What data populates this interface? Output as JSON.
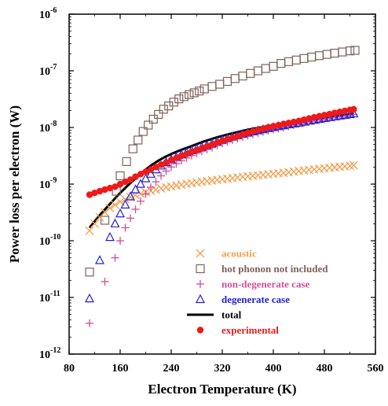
{
  "chart_data": {
    "type": "scatter",
    "xlabel": "Electron Temperature (K)",
    "ylabel": "Power loss per electron (W)",
    "xlim": [
      80,
      560
    ],
    "ylim": [
      1e-12,
      1e-06
    ],
    "yscale": "log",
    "x_ticks": [
      "80",
      "160",
      "240",
      "320",
      "400",
      "480",
      "560"
    ],
    "y_ticks": [
      {
        "base": "10",
        "exp": "-12"
      },
      {
        "base": "10",
        "exp": "-11"
      },
      {
        "base": "10",
        "exp": "-10"
      },
      {
        "base": "10",
        "exp": "-9"
      },
      {
        "base": "10",
        "exp": "-8"
      },
      {
        "base": "10",
        "exp": "-7"
      },
      {
        "base": "10",
        "exp": "-6"
      }
    ],
    "legend_position": "bottom-right",
    "series": [
      {
        "name": "acoustic",
        "marker": "x",
        "color": "#f0a050",
        "points": [
          [
            112,
            1.5e-10
          ],
          [
            120,
            2e-10
          ],
          [
            128,
            2.6e-10
          ],
          [
            136,
            3.2e-10
          ],
          [
            144,
            3.8e-10
          ],
          [
            152,
            4.3e-10
          ],
          [
            160,
            4.9e-10
          ],
          [
            168,
            5.4e-10
          ],
          [
            176,
            5.9e-10
          ],
          [
            184,
            6.4e-10
          ],
          [
            192,
            6.8e-10
          ],
          [
            200,
            7.2e-10
          ],
          [
            208,
            7.6e-10
          ],
          [
            216,
            8e-10
          ],
          [
            224,
            8.4e-10
          ],
          [
            232,
            8.8e-10
          ],
          [
            240,
            9.1e-10
          ],
          [
            248,
            9.5e-10
          ],
          [
            256,
            9.8e-10
          ],
          [
            264,
            1.01e-09
          ],
          [
            272,
            1.04e-09
          ],
          [
            280,
            1.07e-09
          ],
          [
            288,
            1.1e-09
          ],
          [
            296,
            1.13e-09
          ],
          [
            304,
            1.16e-09
          ],
          [
            312,
            1.19e-09
          ],
          [
            320,
            1.22e-09
          ],
          [
            328,
            1.25e-09
          ],
          [
            336,
            1.28e-09
          ],
          [
            344,
            1.31e-09
          ],
          [
            352,
            1.34e-09
          ],
          [
            360,
            1.37e-09
          ],
          [
            368,
            1.4e-09
          ],
          [
            376,
            1.43e-09
          ],
          [
            384,
            1.46e-09
          ],
          [
            392,
            1.49e-09
          ],
          [
            400,
            1.52e-09
          ],
          [
            408,
            1.55e-09
          ],
          [
            416,
            1.58e-09
          ],
          [
            424,
            1.62e-09
          ],
          [
            432,
            1.66e-09
          ],
          [
            440,
            1.7e-09
          ],
          [
            448,
            1.74e-09
          ],
          [
            456,
            1.78e-09
          ],
          [
            464,
            1.82e-09
          ],
          [
            472,
            1.86e-09
          ],
          [
            480,
            1.9e-09
          ],
          [
            488,
            1.94e-09
          ],
          [
            496,
            1.98e-09
          ],
          [
            504,
            2.02e-09
          ],
          [
            512,
            2.06e-09
          ],
          [
            520,
            2.1e-09
          ],
          [
            526,
            2.14e-09
          ]
        ]
      },
      {
        "name": "hot phonon not included",
        "marker": "square",
        "color": "#806058",
        "points": [
          [
            112,
            2.8e-11
          ],
          [
            136,
            2.3e-10
          ],
          [
            154,
            7.5e-10
          ],
          [
            160,
            1.4e-09
          ],
          [
            170,
            2.5e-09
          ],
          [
            180,
            4.2e-09
          ],
          [
            188,
            6e-09
          ],
          [
            196,
            8.5e-09
          ],
          [
            204,
            1.1e-08
          ],
          [
            212,
            1.4e-08
          ],
          [
            220,
            1.7e-08
          ],
          [
            228,
            2.1e-08
          ],
          [
            236,
            2.4e-08
          ],
          [
            244,
            2.8e-08
          ],
          [
            252,
            3.2e-08
          ],
          [
            260,
            3.5e-08
          ],
          [
            268,
            3.8e-08
          ],
          [
            276,
            4.1e-08
          ],
          [
            284,
            4.4e-08
          ],
          [
            292,
            4.8e-08
          ],
          [
            304,
            5.3e-08
          ],
          [
            316,
            5.8e-08
          ],
          [
            328,
            6.5e-08
          ],
          [
            340,
            7.3e-08
          ],
          [
            352,
            8.1e-08
          ],
          [
            364,
            9e-08
          ],
          [
            376,
            1e-07
          ],
          [
            388,
            1.1e-07
          ],
          [
            400,
            1.2e-07
          ],
          [
            412,
            1.35e-07
          ],
          [
            424,
            1.45e-07
          ],
          [
            436,
            1.55e-07
          ],
          [
            448,
            1.65e-07
          ],
          [
            460,
            1.75e-07
          ],
          [
            472,
            1.85e-07
          ],
          [
            484,
            1.95e-07
          ],
          [
            496,
            2.05e-07
          ],
          [
            508,
            2.15e-07
          ],
          [
            520,
            2.25e-07
          ],
          [
            528,
            2.3e-07
          ]
        ]
      },
      {
        "name": "non-degenerate case",
        "marker": "plus",
        "color": "#d04e98",
        "points": [
          [
            112,
            3.5e-12
          ],
          [
            136,
            1.9e-11
          ],
          [
            152,
            5e-11
          ],
          [
            160,
            1e-10
          ],
          [
            168,
            1.7e-10
          ],
          [
            176,
            2.5e-10
          ],
          [
            184,
            3.6e-10
          ],
          [
            192,
            5e-10
          ],
          [
            200,
            6.7e-10
          ],
          [
            208,
            8.8e-10
          ],
          [
            216,
            1.1e-09
          ],
          [
            224,
            1.4e-09
          ],
          [
            232,
            1.7e-09
          ],
          [
            240,
            2e-09
          ],
          [
            248,
            2.3e-09
          ],
          [
            256,
            2.6e-09
          ],
          [
            264,
            2.9e-09
          ],
          [
            272,
            3.2e-09
          ],
          [
            280,
            3.5e-09
          ],
          [
            288,
            3.8e-09
          ],
          [
            296,
            4.1e-09
          ],
          [
            304,
            4.4e-09
          ],
          [
            312,
            4.8e-09
          ],
          [
            320,
            5.2e-09
          ],
          [
            328,
            5.6e-09
          ],
          [
            336,
            6e-09
          ],
          [
            344,
            6.4e-09
          ],
          [
            352,
            6.8e-09
          ],
          [
            360,
            7.2e-09
          ],
          [
            368,
            7.6e-09
          ],
          [
            376,
            8e-09
          ],
          [
            384,
            8.4e-09
          ],
          [
            392,
            8.8e-09
          ],
          [
            400,
            9.2e-09
          ],
          [
            408,
            9.6e-09
          ],
          [
            416,
            1e-08
          ],
          [
            424,
            1.05e-08
          ],
          [
            432,
            1.1e-08
          ],
          [
            440,
            1.15e-08
          ],
          [
            448,
            1.2e-08
          ],
          [
            456,
            1.25e-08
          ],
          [
            464,
            1.3e-08
          ],
          [
            472,
            1.35e-08
          ],
          [
            480,
            1.4e-08
          ],
          [
            488,
            1.45e-08
          ],
          [
            496,
            1.5e-08
          ],
          [
            504,
            1.55e-08
          ],
          [
            512,
            1.6e-08
          ],
          [
            520,
            1.65e-08
          ],
          [
            526,
            1.7e-08
          ]
        ]
      },
      {
        "name": "degenerate case",
        "marker": "triangle",
        "color": "#2020d8",
        "points": [
          [
            112,
            9.5e-12
          ],
          [
            128,
            4.5e-11
          ],
          [
            144,
            1.15e-10
          ],
          [
            152,
            2e-10
          ],
          [
            160,
            3e-10
          ],
          [
            168,
            4.3e-10
          ],
          [
            176,
            6e-10
          ],
          [
            184,
            8e-10
          ],
          [
            192,
            1e-09
          ],
          [
            200,
            1.25e-09
          ],
          [
            208,
            1.5e-09
          ],
          [
            216,
            1.8e-09
          ],
          [
            224,
            2.1e-09
          ],
          [
            232,
            2.4e-09
          ],
          [
            240,
            2.7e-09
          ],
          [
            248,
            3e-09
          ],
          [
            256,
            3.3e-09
          ],
          [
            264,
            3.6e-09
          ],
          [
            272,
            3.9e-09
          ],
          [
            280,
            4.2e-09
          ],
          [
            288,
            4.5e-09
          ],
          [
            296,
            4.8e-09
          ],
          [
            304,
            5.2e-09
          ],
          [
            312,
            5.6e-09
          ],
          [
            320,
            6e-09
          ],
          [
            328,
            6.4e-09
          ],
          [
            336,
            6.8e-09
          ],
          [
            344,
            7.2e-09
          ],
          [
            352,
            7.6e-09
          ],
          [
            360,
            8e-09
          ],
          [
            368,
            8.4e-09
          ],
          [
            376,
            8.8e-09
          ],
          [
            384,
            9.2e-09
          ],
          [
            392,
            9.6e-09
          ],
          [
            400,
            1e-08
          ],
          [
            408,
            1.04e-08
          ],
          [
            416,
            1.08e-08
          ],
          [
            424,
            1.12e-08
          ],
          [
            432,
            1.16e-08
          ],
          [
            440,
            1.2e-08
          ],
          [
            448,
            1.25e-08
          ],
          [
            456,
            1.3e-08
          ],
          [
            464,
            1.35e-08
          ],
          [
            472,
            1.4e-08
          ],
          [
            480,
            1.45e-08
          ],
          [
            488,
            1.5e-08
          ],
          [
            496,
            1.55e-08
          ],
          [
            504,
            1.6e-08
          ],
          [
            512,
            1.65e-08
          ],
          [
            520,
            1.7e-08
          ],
          [
            526,
            1.75e-08
          ]
        ]
      },
      {
        "name": "total",
        "marker": "line",
        "color": "#000000",
        "points": [
          [
            112,
            1.7e-10
          ],
          [
            120,
            2.2e-10
          ],
          [
            130,
            3e-10
          ],
          [
            140,
            4e-10
          ],
          [
            150,
            5.3e-10
          ],
          [
            160,
            7e-10
          ],
          [
            170,
            9e-10
          ],
          [
            180,
            1.15e-09
          ],
          [
            190,
            1.45e-09
          ],
          [
            200,
            1.8e-09
          ],
          [
            210,
            2.2e-09
          ],
          [
            220,
            2.6e-09
          ],
          [
            230,
            3e-09
          ],
          [
            240,
            3.4e-09
          ],
          [
            250,
            3.8e-09
          ],
          [
            260,
            4.2e-09
          ],
          [
            270,
            4.6e-09
          ],
          [
            280,
            5.1e-09
          ],
          [
            290,
            5.6e-09
          ],
          [
            300,
            6.1e-09
          ],
          [
            310,
            6.6e-09
          ],
          [
            320,
            7.1e-09
          ],
          [
            330,
            7.6e-09
          ],
          [
            340,
            8.1e-09
          ],
          [
            350,
            8.6e-09
          ],
          [
            360,
            9.1e-09
          ],
          [
            370,
            9.6e-09
          ],
          [
            380,
            1e-08
          ],
          [
            390,
            1.05e-08
          ],
          [
            400,
            1.1e-08
          ],
          [
            420,
            1.2e-08
          ],
          [
            440,
            1.3e-08
          ],
          [
            460,
            1.4e-08
          ],
          [
            480,
            1.5e-08
          ],
          [
            500,
            1.6e-08
          ],
          [
            520,
            1.7e-08
          ],
          [
            526,
            1.75e-08
          ]
        ]
      },
      {
        "name": "experimental",
        "marker": "dot",
        "color": "#ee1a1a",
        "points": [
          [
            112,
            6.5e-10
          ],
          [
            120,
            7e-10
          ],
          [
            128,
            7.5e-10
          ],
          [
            136,
            8e-10
          ],
          [
            144,
            8.5e-10
          ],
          [
            152,
            9e-10
          ],
          [
            160,
            1e-09
          ],
          [
            168,
            1.1e-09
          ],
          [
            176,
            1.2e-09
          ],
          [
            184,
            1.35e-09
          ],
          [
            192,
            1.5e-09
          ],
          [
            200,
            1.65e-09
          ],
          [
            208,
            1.8e-09
          ],
          [
            216,
            2e-09
          ],
          [
            224,
            2.2e-09
          ],
          [
            232,
            2.4e-09
          ],
          [
            240,
            2.65e-09
          ],
          [
            248,
            2.9e-09
          ],
          [
            256,
            3.15e-09
          ],
          [
            264,
            3.4e-09
          ],
          [
            272,
            3.7e-09
          ],
          [
            280,
            4e-09
          ],
          [
            288,
            4.3e-09
          ],
          [
            296,
            4.65e-09
          ],
          [
            304,
            5e-09
          ],
          [
            312,
            5.4e-09
          ],
          [
            320,
            5.8e-09
          ],
          [
            328,
            6.2e-09
          ],
          [
            336,
            6.6e-09
          ],
          [
            344,
            7e-09
          ],
          [
            352,
            7.5e-09
          ],
          [
            360,
            8e-09
          ],
          [
            368,
            8.5e-09
          ],
          [
            376,
            9e-09
          ],
          [
            384,
            9.5e-09
          ],
          [
            392,
            1e-08
          ],
          [
            400,
            1.05e-08
          ],
          [
            408,
            1.1e-08
          ],
          [
            416,
            1.15e-08
          ],
          [
            424,
            1.2e-08
          ],
          [
            432,
            1.25e-08
          ],
          [
            440,
            1.3e-08
          ],
          [
            448,
            1.37e-08
          ],
          [
            456,
            1.44e-08
          ],
          [
            464,
            1.51e-08
          ],
          [
            472,
            1.58e-08
          ],
          [
            480,
            1.65e-08
          ],
          [
            488,
            1.72e-08
          ],
          [
            496,
            1.8e-08
          ],
          [
            504,
            1.88e-08
          ],
          [
            512,
            1.96e-08
          ],
          [
            520,
            2.04e-08
          ],
          [
            526,
            2.1e-08
          ]
        ]
      }
    ]
  }
}
